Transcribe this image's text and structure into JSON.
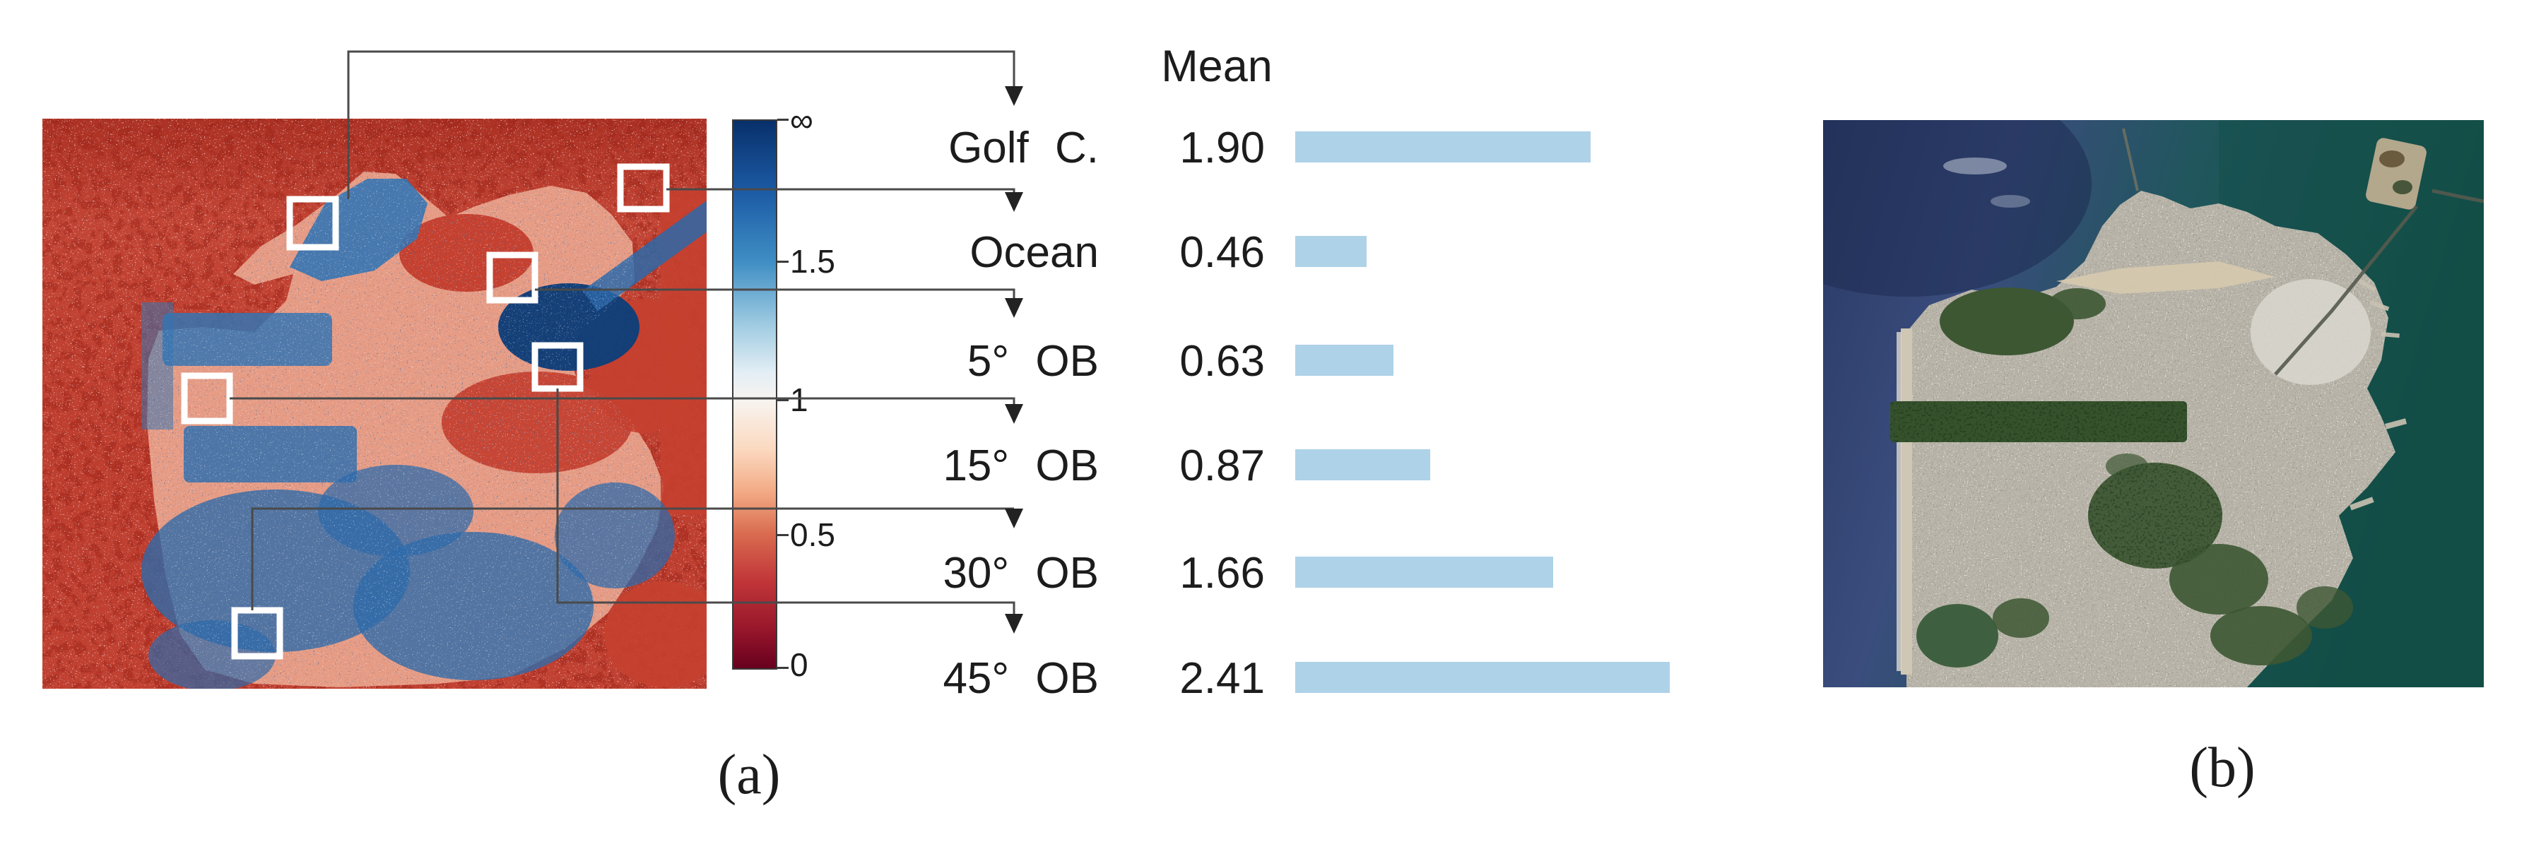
{
  "panel_a": {
    "caption": "(a)",
    "header": "Mean",
    "colorbar_labels": [
      "∞",
      "1.5",
      "1",
      "0.5",
      "0"
    ],
    "rows": [
      {
        "label": "Golf C.",
        "value": "1.90"
      },
      {
        "label": "Ocean",
        "value": "0.46"
      },
      {
        "label": "5° OB",
        "value": "0.63"
      },
      {
        "label": "15° OB",
        "value": "0.87"
      },
      {
        "label": "30° OB",
        "value": "1.66"
      },
      {
        "label": "45° OB",
        "value": "2.41"
      }
    ]
  },
  "panel_b": {
    "caption": "(b)"
  },
  "chart_data": {
    "type": "bar",
    "orientation": "horizontal",
    "title": "Mean",
    "categories": [
      "Golf C.",
      "Ocean",
      "5° OB",
      "15° OB",
      "30° OB",
      "45° OB"
    ],
    "values": [
      1.9,
      0.46,
      0.63,
      0.87,
      1.66,
      2.41
    ],
    "bar_color": "#aed2e8",
    "xlim": [
      0,
      2.6
    ],
    "grid": false,
    "legend": "none",
    "colorbar": {
      "tick_labels": [
        "∞",
        "1.5",
        "1",
        "0.5",
        "0"
      ],
      "orientation": "vertical",
      "colormap": "RdBu (dark blue = high ratio, white = 1, dark red = 0)",
      "top_color": "#08306b",
      "mid_color": "#f8f4f0",
      "bottom_color": "#67001f"
    }
  }
}
